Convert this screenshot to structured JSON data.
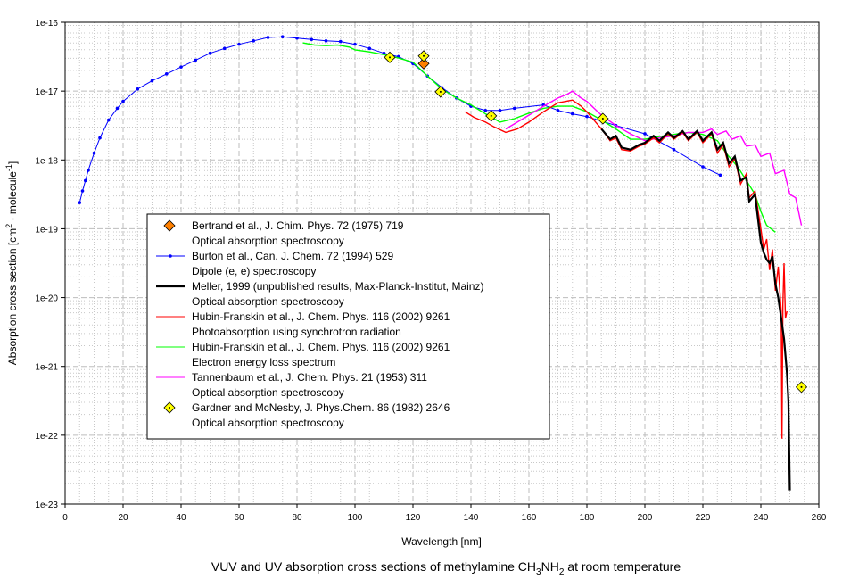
{
  "chart_data": {
    "type": "line",
    "title": {
      "pre": "VUV and UV absorption cross sections of methylamine CH",
      "sub1": "3",
      "mid": "NH",
      "sub2": "2",
      "post": " at room temperature"
    },
    "xlabel": "Wavelength [nm]",
    "ylabel": {
      "pre": "Absorption cross section [cm",
      "sup1": "2",
      "mid": " · molecule",
      "sup2": "-1",
      "post": "]"
    },
    "xlim": [
      0,
      260
    ],
    "ylim_log10": [
      -23,
      -16
    ],
    "y_scale": "log",
    "grid": true,
    "xticks": [
      "0",
      "20",
      "40",
      "60",
      "80",
      "100",
      "120",
      "140",
      "160",
      "180",
      "200",
      "220",
      "240",
      "260"
    ],
    "yticks": [
      "1e-16",
      "1e-17",
      "1e-18",
      "1e-19",
      "1e-20",
      "1e-21",
      "1e-22",
      "1e-23"
    ],
    "legend_position": "lower-left",
    "series": [
      {
        "name": "Bertrand et al., J. Chim. Phys. 72 (1975) 719",
        "desc": "Optical absorption spectroscopy",
        "color": "#ff8000",
        "style": "marker-orange-diamond",
        "points": [
          [
            123.7,
            -16.6
          ]
        ]
      },
      {
        "name": "Burton et al., Can. J. Chem. 72 (1994) 529",
        "desc": "Dipole (e, e) spectroscopy",
        "color": "#0000ff",
        "style": "line-dots",
        "points": [
          [
            5,
            -18.62
          ],
          [
            6,
            -18.45
          ],
          [
            7,
            -18.3
          ],
          [
            8,
            -18.15
          ],
          [
            10,
            -17.9
          ],
          [
            12,
            -17.68
          ],
          [
            15,
            -17.42
          ],
          [
            18,
            -17.25
          ],
          [
            20,
            -17.15
          ],
          [
            25,
            -16.97
          ],
          [
            30,
            -16.85
          ],
          [
            35,
            -16.75
          ],
          [
            40,
            -16.65
          ],
          [
            45,
            -16.55
          ],
          [
            50,
            -16.45
          ],
          [
            55,
            -16.38
          ],
          [
            60,
            -16.32
          ],
          [
            65,
            -16.27
          ],
          [
            70,
            -16.22
          ],
          [
            75,
            -16.21
          ],
          [
            80,
            -16.23
          ],
          [
            85,
            -16.25
          ],
          [
            90,
            -16.27
          ],
          [
            95,
            -16.28
          ],
          [
            100,
            -16.32
          ],
          [
            105,
            -16.38
          ],
          [
            110,
            -16.45
          ],
          [
            115,
            -16.5
          ],
          [
            120,
            -16.6
          ],
          [
            125,
            -16.78
          ],
          [
            130,
            -16.95
          ],
          [
            135,
            -17.1
          ],
          [
            140,
            -17.22
          ],
          [
            145,
            -17.28
          ],
          [
            150,
            -17.28
          ],
          [
            155,
            -17.25
          ],
          [
            165,
            -17.2
          ],
          [
            170,
            -17.28
          ],
          [
            175,
            -17.33
          ],
          [
            180,
            -17.37
          ],
          [
            190,
            -17.5
          ],
          [
            200,
            -17.62
          ],
          [
            210,
            -17.85
          ],
          [
            220,
            -18.1
          ],
          [
            226,
            -18.22
          ]
        ]
      },
      {
        "name": "Meller, 1999 (unpublished results, Max-Planck-Institut, Mainz)",
        "desc": "Optical absorption spectroscopy",
        "color": "#000000",
        "style": "thick-line",
        "points": [
          [
            185,
            -17.55
          ],
          [
            188,
            -17.7
          ],
          [
            190,
            -17.65
          ],
          [
            192,
            -17.82
          ],
          [
            195,
            -17.85
          ],
          [
            198,
            -17.78
          ],
          [
            200,
            -17.75
          ],
          [
            203,
            -17.65
          ],
          [
            205,
            -17.72
          ],
          [
            208,
            -17.6
          ],
          [
            210,
            -17.68
          ],
          [
            213,
            -17.58
          ],
          [
            215,
            -17.7
          ],
          [
            218,
            -17.58
          ],
          [
            220,
            -17.72
          ],
          [
            223,
            -17.6
          ],
          [
            225,
            -17.85
          ],
          [
            227,
            -17.75
          ],
          [
            229,
            -18.05
          ],
          [
            231,
            -17.95
          ],
          [
            233,
            -18.3
          ],
          [
            235,
            -18.25
          ],
          [
            236,
            -18.6
          ],
          [
            238,
            -18.5
          ],
          [
            240,
            -19.2
          ],
          [
            241,
            -19.35
          ],
          [
            242,
            -19.45
          ],
          [
            243,
            -19.5
          ],
          [
            244,
            -19.4
          ],
          [
            245,
            -19.8
          ],
          [
            246,
            -20.0
          ],
          [
            247,
            -20.3
          ],
          [
            248,
            -20.6
          ],
          [
            249,
            -21.1
          ],
          [
            249.5,
            -21.5
          ],
          [
            250,
            -22.8
          ]
        ]
      },
      {
        "name": "Hubin-Franskin et al., J. Chem. Phys. 116 (2002) 9261",
        "desc": "Photoabsorption using synchrotron radiation",
        "color": "#ff0000",
        "style": "line",
        "points": [
          [
            138,
            -17.3
          ],
          [
            141,
            -17.38
          ],
          [
            145,
            -17.45
          ],
          [
            148,
            -17.52
          ],
          [
            152,
            -17.6
          ],
          [
            156,
            -17.55
          ],
          [
            160,
            -17.45
          ],
          [
            165,
            -17.3
          ],
          [
            170,
            -17.17
          ],
          [
            175,
            -17.13
          ],
          [
            178,
            -17.22
          ],
          [
            180,
            -17.3
          ],
          [
            183,
            -17.45
          ],
          [
            185,
            -17.55
          ],
          [
            188,
            -17.72
          ],
          [
            190,
            -17.68
          ],
          [
            192,
            -17.85
          ],
          [
            195,
            -17.87
          ],
          [
            198,
            -17.8
          ],
          [
            200,
            -17.77
          ],
          [
            203,
            -17.68
          ],
          [
            205,
            -17.75
          ],
          [
            208,
            -17.62
          ],
          [
            210,
            -17.7
          ],
          [
            213,
            -17.6
          ],
          [
            215,
            -17.72
          ],
          [
            218,
            -17.6
          ],
          [
            220,
            -17.75
          ],
          [
            223,
            -17.62
          ],
          [
            225,
            -17.9
          ],
          [
            227,
            -17.78
          ],
          [
            229,
            -18.1
          ],
          [
            231,
            -17.98
          ],
          [
            233,
            -18.35
          ],
          [
            235,
            -18.2
          ],
          [
            236,
            -18.55
          ],
          [
            238,
            -18.45
          ],
          [
            240,
            -19.0
          ],
          [
            241,
            -19.3
          ],
          [
            242,
            -19.15
          ],
          [
            243,
            -19.6
          ],
          [
            244,
            -19.3
          ],
          [
            245,
            -19.9
          ],
          [
            246,
            -19.55
          ],
          [
            247,
            -20.2
          ],
          [
            247.3,
            -22.05
          ],
          [
            247.6,
            -20.1
          ],
          [
            248,
            -19.5
          ],
          [
            248.5,
            -20.3
          ],
          [
            249,
            -20.2
          ]
        ]
      },
      {
        "name": "Hubin-Franskin et al., J. Chem. Phys. 116 (2002) 9261",
        "desc": "Electron energy loss spectrum",
        "color": "#00ff00",
        "style": "line",
        "points": [
          [
            82,
            -16.3
          ],
          [
            86,
            -16.33
          ],
          [
            90,
            -16.34
          ],
          [
            94,
            -16.33
          ],
          [
            98,
            -16.36
          ],
          [
            100,
            -16.4
          ],
          [
            105,
            -16.43
          ],
          [
            110,
            -16.47
          ],
          [
            115,
            -16.52
          ],
          [
            120,
            -16.58
          ],
          [
            125,
            -16.78
          ],
          [
            130,
            -16.97
          ],
          [
            135,
            -17.1
          ],
          [
            140,
            -17.2
          ],
          [
            145,
            -17.33
          ],
          [
            150,
            -17.45
          ],
          [
            155,
            -17.4
          ],
          [
            160,
            -17.32
          ],
          [
            165,
            -17.25
          ],
          [
            170,
            -17.22
          ],
          [
            175,
            -17.22
          ],
          [
            180,
            -17.3
          ],
          [
            185,
            -17.42
          ],
          [
            190,
            -17.55
          ],
          [
            195,
            -17.7
          ],
          [
            200,
            -17.7
          ],
          [
            205,
            -17.66
          ],
          [
            210,
            -17.63
          ],
          [
            215,
            -17.6
          ],
          [
            220,
            -17.63
          ],
          [
            225,
            -17.72
          ],
          [
            228,
            -17.9
          ],
          [
            232,
            -18.1
          ],
          [
            235,
            -18.3
          ],
          [
            238,
            -18.5
          ],
          [
            240,
            -18.75
          ],
          [
            242,
            -18.95
          ],
          [
            245,
            -19.05
          ]
        ]
      },
      {
        "name": "Tannenbaum et al., J. Chem. Phys. 21 (1953) 311",
        "desc": "Optical absorption spectroscopy",
        "color": "#ff00ff",
        "style": "line",
        "points": [
          [
            152,
            -17.55
          ],
          [
            156,
            -17.45
          ],
          [
            160,
            -17.35
          ],
          [
            165,
            -17.22
          ],
          [
            170,
            -17.1
          ],
          [
            173,
            -17.05
          ],
          [
            175,
            -17.0
          ],
          [
            178,
            -17.1
          ],
          [
            180,
            -17.15
          ],
          [
            185,
            -17.35
          ],
          [
            190,
            -17.5
          ],
          [
            195,
            -17.62
          ],
          [
            200,
            -17.72
          ],
          [
            205,
            -17.68
          ],
          [
            210,
            -17.65
          ],
          [
            215,
            -17.6
          ],
          [
            220,
            -17.6
          ],
          [
            223,
            -17.55
          ],
          [
            225,
            -17.63
          ],
          [
            228,
            -17.58
          ],
          [
            230,
            -17.7
          ],
          [
            233,
            -17.65
          ],
          [
            235,
            -17.8
          ],
          [
            238,
            -17.78
          ],
          [
            240,
            -17.95
          ],
          [
            243,
            -17.9
          ],
          [
            245,
            -18.2
          ],
          [
            248,
            -18.15
          ],
          [
            250,
            -18.5
          ],
          [
            252,
            -18.55
          ],
          [
            254,
            -18.95
          ]
        ]
      },
      {
        "name": "Gardner and McNesby, J. Phys.Chem. 86 (1982) 2646",
        "desc": "Optical absorption spectroscopy",
        "color": "#ffff00",
        "style": "marker-yellow-diamond",
        "points": [
          [
            112,
            -16.51
          ],
          [
            123.7,
            -16.49
          ],
          [
            129.5,
            -17.01
          ],
          [
            147,
            -17.36
          ],
          [
            185.5,
            -17.4
          ],
          [
            254,
            -21.3
          ]
        ]
      }
    ]
  }
}
